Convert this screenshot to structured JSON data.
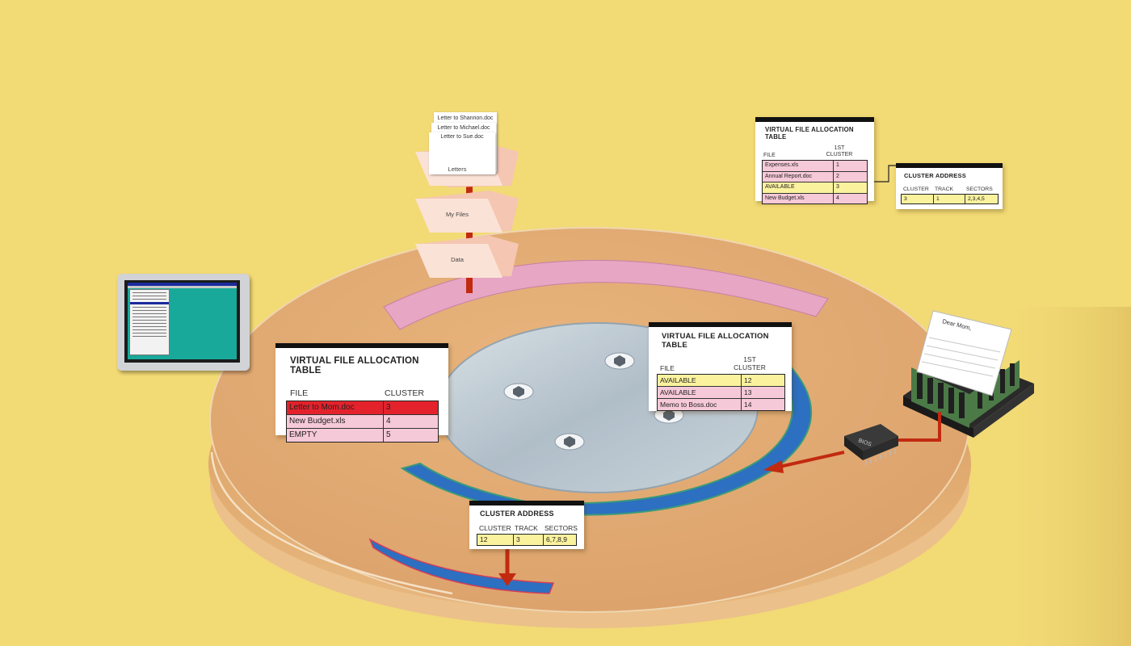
{
  "colors": {
    "background": "#f2da75",
    "platter": "#e3a86c",
    "pink_track": "#e6a6c4",
    "blue_track": "#2d6fc0",
    "red_arrow": "#c22a10",
    "table_pink": "#f6c9d8",
    "table_yellow": "#fbf29e",
    "table_red": "#e3222c"
  },
  "folders": {
    "documents": [
      "Letter to Shannon.doc",
      "Letter to Michael.doc",
      "Letter to Sue.doc"
    ],
    "letters": "Letters",
    "my_files": "My Files",
    "data": "Data"
  },
  "letter_paper": {
    "greeting": "Dear Mom,"
  },
  "bios_chip": {
    "label": "BIOS"
  },
  "vfat_left": {
    "title": "VIRTUAL FILE ALLOCATION TABLE",
    "col_file": "FILE",
    "col_cluster": "CLUSTER",
    "rows": [
      {
        "file": "Letter to Mom.doc",
        "cluster": "3"
      },
      {
        "file": "New Budget.xls",
        "cluster": "4"
      },
      {
        "file": "EMPTY",
        "cluster": "5"
      }
    ]
  },
  "vfat_right": {
    "title": "VIRTUAL FILE ALLOCATION TABLE",
    "col_file": "FILE",
    "col_cluster_1": "1ST",
    "col_cluster_2": "CLUSTER",
    "rows": [
      {
        "file": "AVAILABLE",
        "cluster": "12"
      },
      {
        "file": "AVAILABLE",
        "cluster": "13"
      },
      {
        "file": "Memo to Boss.doc",
        "cluster": "14"
      }
    ]
  },
  "vfat_top": {
    "title": "VIRTUAL FILE ALLOCATION TABLE",
    "col_file": "FILE",
    "col_cluster_1": "1ST",
    "col_cluster_2": "CLUSTER",
    "rows": [
      {
        "file": "Expenses.xls",
        "cluster": "1"
      },
      {
        "file": "Annual Report.doc",
        "cluster": "2"
      },
      {
        "file": "AVAILABLE",
        "cluster": "3"
      },
      {
        "file": "New Budget.xls",
        "cluster": "4"
      }
    ]
  },
  "cluster_bottom": {
    "title": "CLUSTER ADDRESS",
    "col_cluster": "CLUSTER",
    "col_track": "TRACK",
    "col_sectors": "SECTORS",
    "cluster": "12",
    "track": "3",
    "sectors": "6,7,8,9"
  },
  "cluster_top": {
    "title": "CLUSTER ADDRESS",
    "col_cluster": "CLUSTER",
    "col_track": "TRACK",
    "col_sectors": "SECTORS",
    "cluster": "3",
    "track": "1",
    "sectors": "2,3,4,5"
  }
}
